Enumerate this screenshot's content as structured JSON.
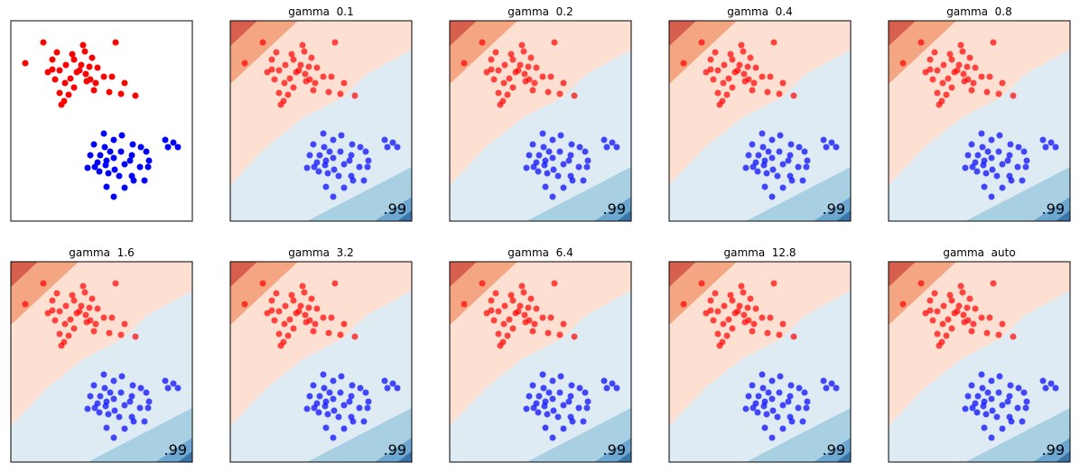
{
  "chart_data": {
    "type": "scatter",
    "xlim": [
      0,
      201
    ],
    "ylim": [
      0,
      222
    ],
    "series": [
      {
        "color": "#ff0000",
        "x": [
          36,
          16,
          80,
          116,
          82,
          51,
          68,
          46,
          61,
          78,
          87,
          96,
          76,
          54,
          73,
          41,
          103,
          112,
          66,
          88,
          49,
          60,
          84,
          94,
          126,
          109,
          138,
          122,
          92,
          70,
          54,
          64,
          59,
          56,
          46,
          83,
          70,
          90
        ],
        "y": [
          198,
          175,
          195,
          198,
          188,
          187,
          185,
          179,
          173,
          173,
          171,
          170,
          167,
          167,
          165,
          165,
          160,
          160,
          158,
          157,
          157,
          153,
          155,
          153,
          153,
          143,
          139,
          141,
          145,
          148,
          142,
          140,
          133,
          129,
          168,
          163,
          179,
          181
        ]
      },
      {
        "color": "#0000ff",
        "x": [
          171,
          180,
          174,
          185,
          123,
          103,
          114,
          92,
          104,
          135,
          110,
          122,
          144,
          150,
          99,
          88,
          114,
          134,
          153,
          93,
          105,
          126,
          115,
          143,
          152,
          98,
          134,
          120,
          108,
          85,
          136,
          148,
          106,
          126,
          114,
          132,
          106,
          96
        ],
        "y": [
          90,
          87,
          82,
          82,
          95,
          97,
          90,
          85,
          82,
          85,
          77,
          77,
          82,
          77,
          73,
          73,
          70,
          73,
          67,
          60,
          62,
          63,
          57,
          60,
          60,
          55,
          50,
          50,
          53,
          59,
          45,
          45,
          38,
          37,
          27,
          67,
          67,
          65
        ]
      }
    ],
    "subplots": [
      {
        "decision_regions": false
      },
      {
        "decision_regions": true,
        "title": "gamma  0.1",
        "annotation": ".99"
      },
      {
        "decision_regions": true,
        "title": "gamma  0.2",
        "annotation": ".99"
      },
      {
        "decision_regions": true,
        "title": "gamma  0.4",
        "annotation": ".99"
      },
      {
        "decision_regions": true,
        "title": "gamma  0.8",
        "annotation": ".99"
      },
      {
        "decision_regions": true,
        "title": "gamma  1.6",
        "annotation": ".99"
      },
      {
        "decision_regions": true,
        "title": "gamma  3.2",
        "annotation": ".99"
      },
      {
        "decision_regions": true,
        "title": "gamma  6.4",
        "annotation": ".99"
      },
      {
        "decision_regions": true,
        "title": "gamma  12.8",
        "annotation": ".99"
      },
      {
        "decision_regions": true,
        "title": "gamma  auto",
        "annotation": ".99"
      }
    ]
  }
}
